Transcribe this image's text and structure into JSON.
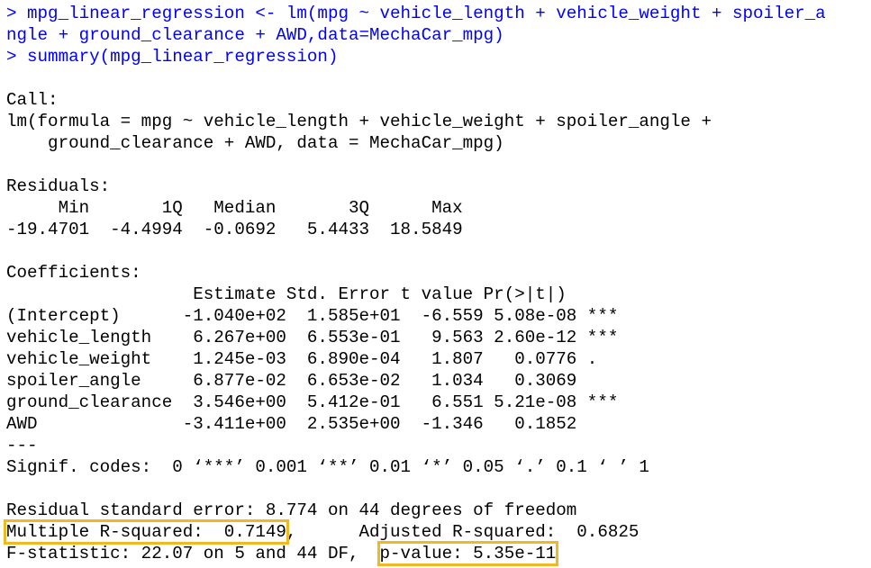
{
  "colors": {
    "command": "#0000ff",
    "output": "#000000",
    "highlight_box": "#f2b824",
    "background": "#ffffff"
  },
  "command": {
    "line1": "> mpg_linear_regression <- lm(mpg ~ vehicle_length + vehicle_weight + spoiler_a",
    "line2": "ngle + ground_clearance + AWD,data=MechaCar_mpg)",
    "line3": "> summary(mpg_linear_regression)"
  },
  "call": {
    "label": "Call:",
    "line1": "lm(formula = mpg ~ vehicle_length + vehicle_weight + spoiler_angle + ",
    "line2": "    ground_clearance + AWD, data = MechaCar_mpg)"
  },
  "residuals": {
    "label": "Residuals:",
    "header": "     Min       1Q   Median       3Q      Max ",
    "values": "-19.4701  -4.4994  -0.0692   5.4433  18.5849 "
  },
  "coefficients": {
    "label": "Coefficients:",
    "header": "                  Estimate Std. Error t value Pr(>|t|)    ",
    "rows": [
      "(Intercept)      -1.040e+02  1.585e+01  -6.559 5.08e-08 ***",
      "vehicle_length    6.267e+00  6.553e-01   9.563 2.60e-12 ***",
      "vehicle_weight    1.245e-03  6.890e-04   1.807   0.0776 .  ",
      "spoiler_angle     6.877e-02  6.653e-02   1.034   0.3069    ",
      "ground_clearance  3.546e+00  5.412e-01   6.551 5.21e-08 ***",
      "AWD              -3.411e+00  2.535e+00  -1.346   0.1852    "
    ],
    "separator": "---",
    "signif": "Signif. codes:  0 ‘***’ 0.001 ‘**’ 0.01 ‘*’ 0.05 ‘.’ 0.1 ‘ ’ 1"
  },
  "stats": {
    "rse": "Residual standard error: 8.774 on 44 degrees of freedom",
    "multiple_r2": "Multiple R-squared:  0.7149",
    "adjusted_r2_gap": ",\tAdjusted R-squared:  0.6825 ",
    "fstat": "F-statistic: 22.07 on 5 and 44 DF,  ",
    "pvalue": "p-value: 5.35e-11"
  }
}
